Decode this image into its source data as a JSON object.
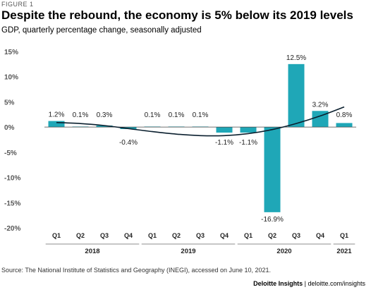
{
  "figure_label": "FIGURE 1",
  "title": "Despite the rebound, the economy is 5% below its 2019 levels",
  "subtitle": "GDP, quarterly percentage change, seasonally adjusted",
  "source": "Source: The National Institute of Statistics and Geography (INEGI), accessed on June 10, 2021.",
  "credit": {
    "brand": "Deloitte Insights",
    "separator": " | ",
    "url": "deloitte.com/insights"
  },
  "colors": {
    "bar": "#1FA7B7",
    "trend": "#0A1F2E",
    "zero_line": "#444444"
  },
  "chart_data": {
    "type": "bar",
    "title": "Despite the rebound, the economy is 5% below its 2019 levels",
    "ylabel": "GDP, quarterly percentage change, seasonally adjusted",
    "xlabel": "",
    "categories": [
      "Q1",
      "Q2",
      "Q3",
      "Q4",
      "Q1",
      "Q2",
      "Q3",
      "Q4",
      "Q1",
      "Q2",
      "Q3",
      "Q4",
      "Q1"
    ],
    "values": [
      1.2,
      0.1,
      0.3,
      -0.4,
      0.1,
      0.1,
      0.1,
      -1.1,
      -1.1,
      -16.9,
      12.5,
      3.2,
      0.8
    ],
    "data_labels": [
      "1.2%",
      "0.1%",
      "0.3%",
      "-0.4%",
      "0.1%",
      "0.1%",
      "0.1%",
      "-1.1%",
      "-1.1%",
      "-16.9%",
      "12.5%",
      "3.2%",
      "0.8%"
    ],
    "years": [
      {
        "label": "2018",
        "start": 0,
        "end": 3
      },
      {
        "label": "2019",
        "start": 4,
        "end": 7
      },
      {
        "label": "2020",
        "start": 8,
        "end": 11
      },
      {
        "label": "2021",
        "start": 12,
        "end": 12
      }
    ],
    "yticks": [
      15,
      10,
      5,
      0,
      -5,
      -10,
      -15,
      -20
    ],
    "ytick_labels": [
      "15%",
      "10%",
      "5%",
      "0%",
      "-5%",
      "-10%",
      "-15%",
      "-20%"
    ],
    "ylim": [
      -20,
      15
    ],
    "trend_line": [
      0.9,
      0.7,
      0.3,
      -0.3,
      -0.9,
      -1.4,
      -1.7,
      -1.7,
      -1.3,
      -0.5,
      0.7,
      2.2,
      4.0
    ],
    "grid": false,
    "legend": "none"
  }
}
